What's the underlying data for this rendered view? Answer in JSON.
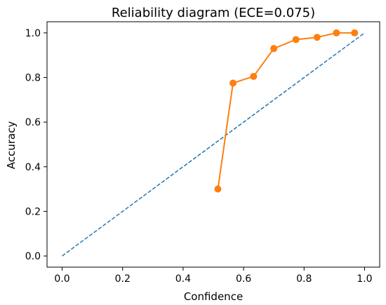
{
  "chart_data": {
    "type": "line",
    "title": "Reliability diagram (ECE=0.075)",
    "xlabel": "Confidence",
    "ylabel": "Accuracy",
    "xlim": [
      -0.05,
      1.05
    ],
    "ylim": [
      -0.05,
      1.05
    ],
    "xticks": [
      0.0,
      0.2,
      0.4,
      0.6,
      0.8,
      1.0
    ],
    "yticks": [
      0.0,
      0.2,
      0.4,
      0.6,
      0.8,
      1.0
    ],
    "xtick_labels": [
      "0.0",
      "0.2",
      "0.4",
      "0.6",
      "0.8",
      "1.0"
    ],
    "ytick_labels": [
      "0.0",
      "0.2",
      "0.4",
      "0.6",
      "0.8",
      "1.0"
    ],
    "grid": false,
    "series": [
      {
        "style": "dashed",
        "color": "#1f77b4",
        "x": [
          0.0,
          1.0
        ],
        "y": [
          0.0,
          1.0
        ]
      },
      {
        "style": "solid-markers",
        "color": "#ff7f0e",
        "x": [
          0.515,
          0.565,
          0.633,
          0.7,
          0.773,
          0.843,
          0.907,
          0.967
        ],
        "y": [
          0.3,
          0.775,
          0.805,
          0.93,
          0.97,
          0.98,
          1.0,
          1.0
        ]
      }
    ]
  }
}
